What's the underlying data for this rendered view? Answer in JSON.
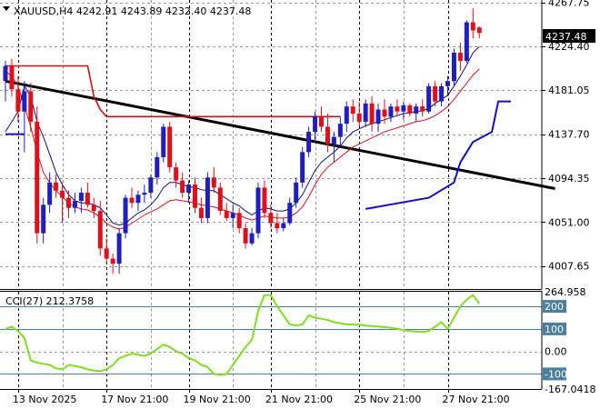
{
  "chart_data": [
    {
      "type": "candlestick",
      "title": "XAUUSD,H4  4242.91 4243.89 4232.40 4237.48",
      "symbol": "XAUUSD",
      "timeframe": "H4",
      "ohlc_header": {
        "open": 4242.91,
        "high": 4243.89,
        "low": 4232.4,
        "close": 4237.48
      },
      "last_price_label": "4237.48",
      "ylim": [
        3985,
        4270
      ],
      "y_ticks": [
        "4267.75",
        "4224.40",
        "4181.05",
        "4137.70",
        "4094.35",
        "4051.00",
        "4007.65"
      ],
      "x_ticks": [
        "13 Nov 2025",
        "17 Nov 21:00",
        "19 Nov 21:00",
        "21 Nov 21:00",
        "25 Nov 21:00",
        "27 Nov 21:00"
      ],
      "grid": true,
      "colors": {
        "up": "#1f1fbf",
        "down": "#e0101a",
        "ma_fast": "#101080",
        "ma_slow": "#e0101a",
        "trend": "#000000",
        "stop": "#d01010",
        "support": "#1010d0"
      },
      "candles": [
        [
          4190,
          4210,
          4170,
          4205
        ],
        [
          4205,
          4212,
          4175,
          4182
        ],
        [
          4182,
          4195,
          4150,
          4160
        ],
        [
          4160,
          4190,
          4120,
          4180
        ],
        [
          4180,
          4188,
          4140,
          4150
        ],
        [
          4150,
          4165,
          4030,
          4040
        ],
        [
          4040,
          4075,
          4030,
          4068
        ],
        [
          4068,
          4100,
          4060,
          4090
        ],
        [
          4090,
          4098,
          4075,
          4082
        ],
        [
          4082,
          4090,
          4050,
          4075
        ],
        [
          4075,
          4082,
          4055,
          4065
        ],
        [
          4065,
          4080,
          4060,
          4072
        ],
        [
          4072,
          4085,
          4060,
          4080
        ],
        [
          4080,
          4090,
          4065,
          4068
        ],
        [
          4068,
          4075,
          4055,
          4062
        ],
        [
          4062,
          4072,
          4018,
          4025
        ],
        [
          4025,
          4035,
          4010,
          4015
        ],
        [
          4015,
          4020,
          4000,
          4010
        ],
        [
          4010,
          4045,
          4000,
          4040
        ],
        [
          4040,
          4078,
          4035,
          4075
        ],
        [
          4075,
          4085,
          4065,
          4070
        ],
        [
          4070,
          4082,
          4062,
          4078
        ],
        [
          4078,
          4088,
          4070,
          4080
        ],
        [
          4080,
          4098,
          4075,
          4095
        ],
        [
          4095,
          4120,
          4088,
          4115
        ],
        [
          4115,
          4148,
          4110,
          4145
        ],
        [
          4145,
          4150,
          4100,
          4105
        ],
        [
          4105,
          4110,
          4085,
          4092
        ],
        [
          4092,
          4100,
          4075,
          4080
        ],
        [
          4080,
          4092,
          4070,
          4088
        ],
        [
          4088,
          4095,
          4060,
          4065
        ],
        [
          4065,
          4075,
          4050,
          4055
        ],
        [
          4055,
          4100,
          4050,
          4095
        ],
        [
          4095,
          4105,
          4080,
          4085
        ],
        [
          4085,
          4090,
          4058,
          4062
        ],
        [
          4062,
          4070,
          4052,
          4055
        ],
        [
          4055,
          4068,
          4045,
          4060
        ],
        [
          4060,
          4065,
          4040,
          4045
        ],
        [
          4045,
          4050,
          4025,
          4030
        ],
        [
          4030,
          4045,
          4028,
          4040
        ],
        [
          4040,
          4090,
          4035,
          4085
        ],
        [
          4085,
          4092,
          4055,
          4060
        ],
        [
          4060,
          4068,
          4045,
          4050
        ],
        [
          4050,
          4060,
          4040,
          4045
        ],
        [
          4045,
          4055,
          4042,
          4050
        ],
        [
          4050,
          4075,
          4048,
          4070
        ],
        [
          4070,
          4095,
          4065,
          4090
        ],
        [
          4090,
          4125,
          4085,
          4120
        ],
        [
          4120,
          4145,
          4115,
          4140
        ],
        [
          4140,
          4160,
          4130,
          4155
        ],
        [
          4155,
          4165,
          4140,
          4145
        ],
        [
          4145,
          4158,
          4120,
          4128
        ],
        [
          4128,
          4140,
          4110,
          4135
        ],
        [
          4135,
          4155,
          4125,
          4148
        ],
        [
          4148,
          4170,
          4140,
          4165
        ],
        [
          4165,
          4172,
          4150,
          4158
        ],
        [
          4158,
          4170,
          4145,
          4150
        ],
        [
          4150,
          4172,
          4145,
          4168
        ],
        [
          4168,
          4175,
          4140,
          4148
        ],
        [
          4148,
          4168,
          4140,
          4162
        ],
        [
          4162,
          4172,
          4148,
          4155
        ],
        [
          4155,
          4168,
          4150,
          4165
        ],
        [
          4165,
          4172,
          4155,
          4160
        ],
        [
          4160,
          4170,
          4152,
          4166
        ],
        [
          4166,
          4168,
          4155,
          4158
        ],
        [
          4158,
          4168,
          4150,
          4165
        ],
        [
          4165,
          4172,
          4155,
          4160
        ],
        [
          4160,
          4188,
          4158,
          4185
        ],
        [
          4185,
          4190,
          4165,
          4170
        ],
        [
          4170,
          4188,
          4165,
          4185
        ],
        [
          4185,
          4195,
          4175,
          4190
        ],
        [
          4190,
          4222,
          4185,
          4218
        ],
        [
          4218,
          4228,
          4200,
          4210
        ],
        [
          4210,
          4250,
          4208,
          4248
        ],
        [
          4248,
          4262,
          4232,
          4240
        ],
        [
          4242.91,
          4243.89,
          4232.4,
          4237.48
        ]
      ],
      "ma_fast": [
        4140,
        4150,
        4160,
        4185,
        4175,
        4150,
        4135,
        4118,
        4100,
        4088,
        4078,
        4072,
        4070,
        4070,
        4068,
        4065,
        4058,
        4050,
        4048,
        4050,
        4055,
        4060,
        4063,
        4068,
        4075,
        4085,
        4090,
        4090,
        4088,
        4086,
        4085,
        4083,
        4082,
        4082,
        4078,
        4074,
        4070,
        4067,
        4062,
        4058,
        4062,
        4065,
        4064,
        4062,
        4062,
        4064,
        4070,
        4078,
        4090,
        4102,
        4110,
        4115,
        4120,
        4126,
        4134,
        4140,
        4143,
        4146,
        4148,
        4150,
        4152,
        4154,
        4156,
        4158,
        4159,
        4160,
        4161,
        4163,
        4168,
        4172,
        4176,
        4185,
        4195,
        4206,
        4218,
        4224
      ],
      "ma_slow": [
        4200,
        4195,
        4185,
        4165,
        4145,
        4120,
        4100,
        4090,
        4082,
        4076,
        4070,
        4066,
        4064,
        4063,
        4060,
        4056,
        4050,
        4046,
        4044,
        4046,
        4050,
        4054,
        4058,
        4061,
        4064,
        4068,
        4072,
        4073,
        4072,
        4071,
        4070,
        4068,
        4067,
        4066,
        4064,
        4062,
        4060,
        4058,
        4055,
        4053,
        4055,
        4057,
        4056,
        4055,
        4055,
        4056,
        4060,
        4066,
        4076,
        4088,
        4098,
        4105,
        4110,
        4115,
        4120,
        4125,
        4128,
        4131,
        4134,
        4137,
        4140,
        4142,
        4144,
        4146,
        4148,
        4150,
        4151,
        4153,
        4156,
        4160,
        4165,
        4172,
        4180,
        4188,
        4196,
        4202
      ],
      "trend_line": [
        [
          0,
          4190
        ],
        [
          87,
          4084
        ]
      ],
      "stop_line": [
        [
          0,
          4205
        ],
        [
          13,
          4205
        ],
        [
          13,
          4205
        ],
        [
          14,
          4175
        ],
        [
          15,
          4162
        ],
        [
          16,
          4155
        ],
        [
          53,
          4155
        ]
      ],
      "support_line": [
        [
          57,
          4064
        ],
        [
          67,
          4075
        ],
        [
          71,
          4090
        ],
        [
          72,
          4110
        ],
        [
          74,
          4130
        ],
        [
          77,
          4140
        ],
        [
          78,
          4170
        ],
        [
          80,
          4170
        ]
      ],
      "support_pre": [
        [
          0,
          4137.7
        ],
        [
          3,
          4137.7
        ]
      ]
    },
    {
      "type": "line",
      "indicator": "CCI(27)",
      "title": "CCI(27) 212.3758",
      "current_value": 212.3758,
      "ylim": [
        -167.0418,
        264.958
      ],
      "y_ticks": [
        "264.958",
        "200",
        "100",
        "0.00",
        "-100",
        "-167.0418"
      ],
      "levels": [
        200,
        100,
        -100
      ],
      "level_color": "#4a7fa0",
      "line_color": "#7fe020",
      "values": [
        100,
        110,
        90,
        60,
        -40,
        -50,
        -55,
        -60,
        -75,
        -80,
        -60,
        -65,
        -70,
        -80,
        -85,
        -88,
        -80,
        -60,
        -30,
        -20,
        -10,
        -15,
        -20,
        -10,
        10,
        30,
        20,
        0,
        -10,
        -30,
        -40,
        -60,
        -70,
        -100,
        -105,
        -100,
        -60,
        -20,
        20,
        50,
        180,
        250,
        250,
        200,
        160,
        120,
        115,
        120,
        160,
        150,
        145,
        140,
        130,
        125,
        120,
        120,
        118,
        115,
        112,
        110,
        108,
        105,
        100,
        95,
        90,
        88,
        86,
        90,
        110,
        130,
        100,
        150,
        200,
        230,
        250,
        212
      ]
    }
  ]
}
